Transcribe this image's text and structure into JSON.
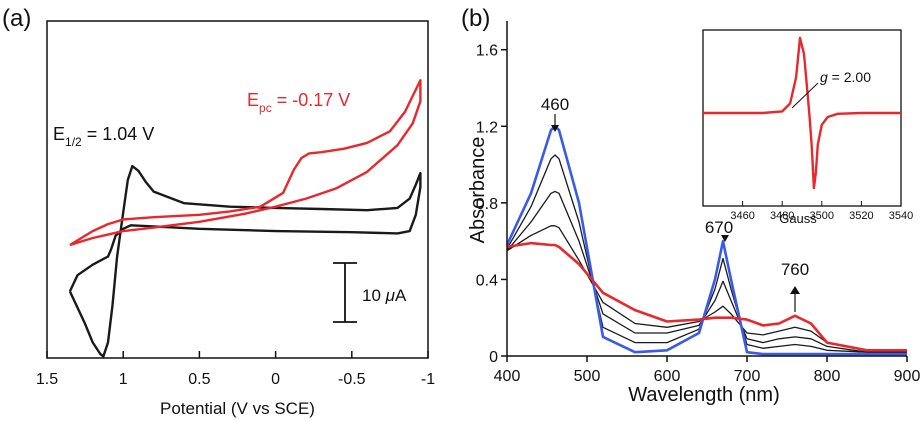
{
  "colors": {
    "red": "#e8282c",
    "blue": "#3a5bea",
    "black": "#1a1a1a",
    "axis": "#111111"
  },
  "chart_data": [
    {
      "panel": "(a)",
      "type": "line",
      "xlabel": "Potential (V vs SCE)",
      "ylabel": "",
      "xlim": [
        1.5,
        -1.0
      ],
      "x_reversed": true,
      "x_ticks": [
        "1.5",
        "1",
        "0.5",
        "0",
        "-0.5",
        "-1"
      ],
      "x_tick_values": [
        1.5,
        1.0,
        0.5,
        0.0,
        -0.5,
        -1.0
      ],
      "y_ticks": [],
      "scale_bar": {
        "value": "10",
        "unit": "μA",
        "label": "10 μA"
      },
      "annotations": {
        "black": {
          "prefix": "E",
          "sub": "1/2",
          "rest": " = 1.04 V"
        },
        "red": {
          "prefix": "E",
          "sub": "pc",
          "rest": " = -0.17 V"
        }
      },
      "series": [
        {
          "color": "black",
          "x": [
            1.35,
            1.3,
            1.25,
            1.2,
            1.15,
            1.13,
            1.1,
            1.07,
            1.04,
            1.0,
            0.97,
            0.94,
            0.9,
            0.85,
            0.8,
            0.6,
            0.3,
            0.0,
            -0.3,
            -0.6,
            -0.8,
            -0.88,
            -0.92,
            -0.95,
            -0.95,
            -0.92,
            -0.88,
            -0.8,
            -0.5,
            0.0,
            0.5,
            0.8,
            0.95,
            1.0,
            1.05,
            1.08,
            1.1,
            1.13,
            1.2,
            1.3,
            1.35
          ],
          "y": [
            -4.0,
            -5.4,
            -6.8,
            -8.4,
            -9.4,
            -9.6,
            -8.4,
            -5.2,
            -1.0,
            2.8,
            5.6,
            6.8,
            6.4,
            5.4,
            4.6,
            3.6,
            3.3,
            3.2,
            3.1,
            3.0,
            3.2,
            4.0,
            5.2,
            6.2,
            5.0,
            2.6,
            1.2,
            1.0,
            1.1,
            1.2,
            1.4,
            1.6,
            1.7,
            1.4,
            0.8,
            -0.4,
            -1.0,
            -1.2,
            -1.7,
            -2.6,
            -4.0
          ]
        },
        {
          "color": "red",
          "x": [
            1.35,
            1.2,
            1.1,
            1.0,
            0.8,
            0.5,
            0.3,
            0.1,
            -0.05,
            -0.12,
            -0.17,
            -0.22,
            -0.3,
            -0.45,
            -0.6,
            -0.75,
            -0.85,
            -0.92,
            -0.95,
            -0.95,
            -0.9,
            -0.8,
            -0.6,
            -0.4,
            -0.2,
            0.0,
            0.2,
            0.5,
            0.8,
            1.0,
            1.1,
            1.2,
            1.35
          ],
          "y": [
            0.0,
            1.2,
            1.8,
            2.2,
            2.4,
            2.6,
            2.9,
            3.3,
            4.5,
            6.5,
            7.5,
            7.9,
            8.0,
            8.3,
            8.8,
            9.8,
            11.5,
            13.4,
            14.2,
            12.4,
            10.5,
            8.6,
            6.3,
            4.9,
            4.0,
            3.3,
            2.7,
            2.0,
            1.5,
            1.2,
            0.9,
            0.6,
            0.0
          ]
        }
      ]
    },
    {
      "panel": "(b)",
      "type": "line",
      "xlabel": "Wavelength (nm)",
      "ylabel": "Absorbance",
      "xlim": [
        400,
        900
      ],
      "ylim": [
        0,
        1.75
      ],
      "x_ticks": [
        400,
        500,
        600,
        700,
        800,
        900
      ],
      "y_ticks": [
        0,
        0.4,
        0.8,
        1.2,
        1.6
      ],
      "y_tick_labels": [
        "0",
        "0.4",
        "0.8",
        "1.2",
        "1.6"
      ],
      "peak_labels": [
        {
          "text": "460",
          "x": 460,
          "arrow": "down"
        },
        {
          "text": "670",
          "x": 670,
          "arrow": "down"
        },
        {
          "text": "760",
          "x": 760,
          "arrow": "up"
        }
      ],
      "x_grid": [
        400,
        430,
        455,
        460,
        465,
        490,
        520,
        560,
        600,
        640,
        660,
        670,
        680,
        700,
        720,
        740,
        760,
        780,
        800,
        850,
        900
      ],
      "series": [
        {
          "color": "blue",
          "y": [
            0.58,
            0.85,
            1.18,
            1.2,
            1.18,
            0.8,
            0.1,
            0.02,
            0.03,
            0.12,
            0.4,
            0.6,
            0.4,
            0.02,
            0.01,
            0.01,
            0.01,
            0.01,
            0.01,
            0.01,
            0.01
          ]
        },
        {
          "color": "black",
          "y": [
            0.56,
            0.78,
            1.03,
            1.05,
            1.03,
            0.7,
            0.15,
            0.07,
            0.07,
            0.14,
            0.35,
            0.51,
            0.35,
            0.06,
            0.04,
            0.05,
            0.06,
            0.05,
            0.03,
            0.02,
            0.02
          ]
        },
        {
          "color": "black",
          "y": [
            0.55,
            0.7,
            0.85,
            0.86,
            0.85,
            0.6,
            0.22,
            0.12,
            0.12,
            0.16,
            0.29,
            0.39,
            0.29,
            0.09,
            0.07,
            0.09,
            0.1,
            0.09,
            0.05,
            0.02,
            0.02
          ]
        },
        {
          "color": "black",
          "y": [
            0.55,
            0.63,
            0.68,
            0.68,
            0.67,
            0.5,
            0.28,
            0.17,
            0.15,
            0.18,
            0.23,
            0.26,
            0.22,
            0.12,
            0.11,
            0.13,
            0.15,
            0.13,
            0.07,
            0.03,
            0.03
          ]
        },
        {
          "color": "red",
          "y": [
            0.57,
            0.59,
            0.58,
            0.58,
            0.57,
            0.48,
            0.33,
            0.24,
            0.18,
            0.19,
            0.2,
            0.2,
            0.2,
            0.19,
            0.16,
            0.17,
            0.21,
            0.17,
            0.07,
            0.03,
            0.03
          ]
        }
      ],
      "inset": {
        "type": "line",
        "xlabel": "Gauss",
        "xlim": [
          3440,
          3540
        ],
        "x_ticks": [
          3460,
          3480,
          3500,
          3520,
          3540
        ],
        "annotation": {
          "italic": "g",
          "rest": " = 2.00"
        },
        "series": [
          {
            "color": "red",
            "x": [
              3440,
              3470,
              3480,
              3484,
              3487,
              3489,
              3491,
              3493,
              3494,
              3495,
              3496,
              3497,
              3498,
              3500,
              3503,
              3508,
              3520,
              3540
            ],
            "y": [
              0.0,
              0.0,
              0.02,
              0.12,
              0.45,
              0.95,
              0.75,
              0.2,
              -0.1,
              -0.45,
              -0.95,
              -0.75,
              -0.4,
              -0.15,
              -0.05,
              -0.01,
              0.0,
              0.0
            ]
          }
        ]
      }
    }
  ]
}
